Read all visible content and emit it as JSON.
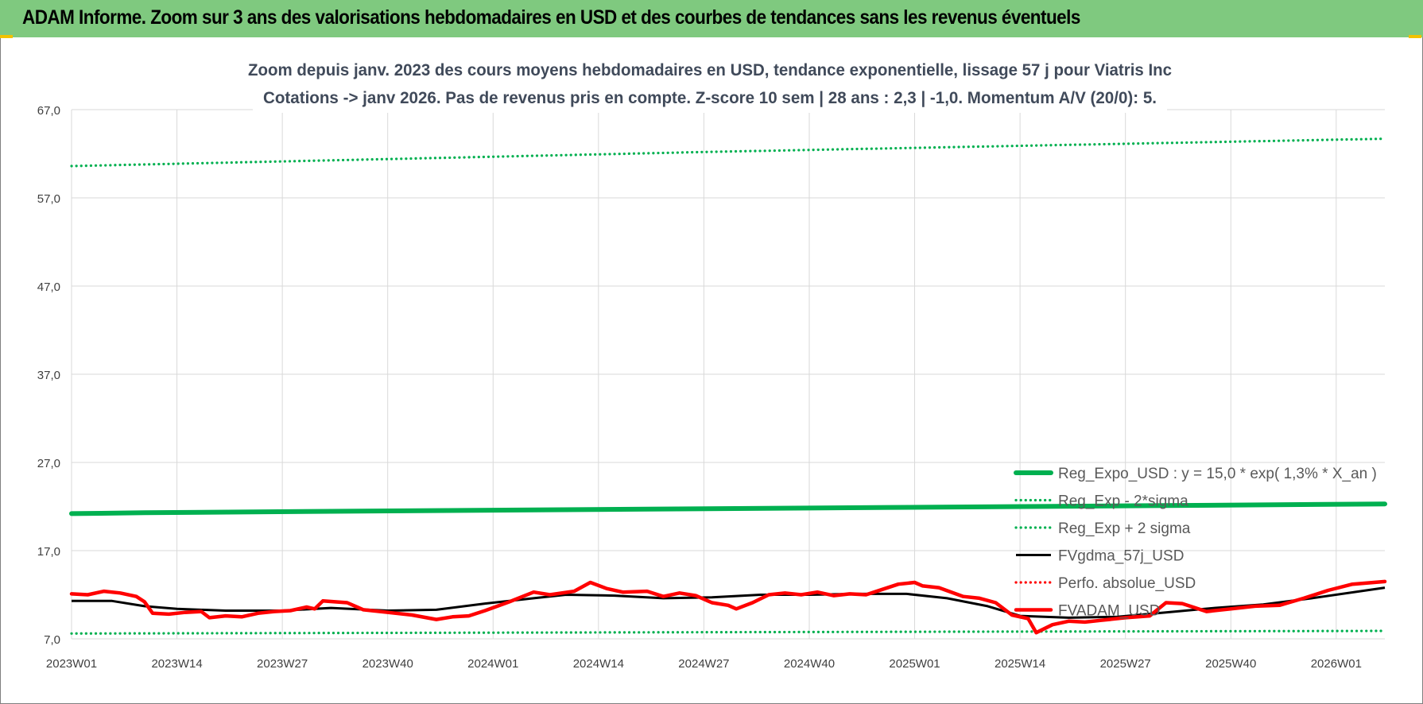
{
  "banner": {
    "title": "ADAM Informe. Zoom sur 3 ans des valorisations hebdomadaires en USD et des courbes de tendances sans les revenus éventuels"
  },
  "chart_data": {
    "type": "line",
    "title_lines": [
      "Zoom depuis janv. 2023 des cours moyens hebdomadaires en USD, tendance exponentielle, lissage 57 j pour Viatris Inc",
      "Cotations -> janv 2026. Pas de revenus pris en compte. Z-score 10 sem | 28 ans : 2,3 | -1,0. Momentum A/V (20/0): 5."
    ],
    "x_start": "2023W01",
    "x_end": "2026W07",
    "x_ticks": [
      "2023W01",
      "2023W14",
      "2023W27",
      "2023W40",
      "2024W01",
      "2024W14",
      "2024W27",
      "2024W40",
      "2025W01",
      "2025W14",
      "2025W27",
      "2025W40",
      "2026W01"
    ],
    "y_ticks": [
      "7,0",
      "17,0",
      "27,0",
      "37,0",
      "47,0",
      "57,0",
      "67,0"
    ],
    "ylim": [
      7,
      67
    ],
    "grid": true,
    "legend_position": "bottom-right",
    "series": [
      {
        "name": "Reg_Expo_USD : y = 15,0 * exp( 1,3% *  X_an )",
        "color": "#00b050",
        "style": "solid-thick",
        "points": [
          [
            "2023W01",
            21.2
          ],
          [
            "2023W10",
            21.3
          ],
          [
            "2023W40",
            21.5
          ],
          [
            "2024W20",
            21.7
          ],
          [
            "2024W50",
            21.9
          ],
          [
            "2025W30",
            22.1
          ],
          [
            "2026W07",
            22.3
          ]
        ]
      },
      {
        "name": "Reg_Exp - 2*sigma",
        "color": "#00b050",
        "style": "dotted",
        "points": [
          [
            "2023W01",
            7.6
          ],
          [
            "2024W01",
            7.7
          ],
          [
            "2025W01",
            7.8
          ],
          [
            "2026W07",
            7.9
          ]
        ]
      },
      {
        "name": "Reg_Exp + 2 sigma",
        "color": "#00b050",
        "style": "dotted",
        "points": [
          [
            "2023W01",
            60.6
          ],
          [
            "2023W40",
            61.4
          ],
          [
            "2024W27",
            62.2
          ],
          [
            "2025W14",
            62.9
          ],
          [
            "2026W07",
            63.7
          ]
        ]
      },
      {
        "name": "FVgdma_57j_USD",
        "color": "#000000",
        "style": "solid",
        "points": [
          [
            "2023W01",
            11.3
          ],
          [
            "2023W06",
            11.3
          ],
          [
            "2023W10",
            10.7
          ],
          [
            "2023W14",
            10.4
          ],
          [
            "2023W20",
            10.2
          ],
          [
            "2023W27",
            10.2
          ],
          [
            "2023W33",
            10.5
          ],
          [
            "2023W40",
            10.2
          ],
          [
            "2023W46",
            10.3
          ],
          [
            "2023W52",
            11.0
          ],
          [
            "2024W06",
            11.6
          ],
          [
            "2024W10",
            12.0
          ],
          [
            "2024W16",
            11.9
          ],
          [
            "2024W22",
            11.6
          ],
          [
            "2024W28",
            11.7
          ],
          [
            "2024W34",
            12.0
          ],
          [
            "2024W40",
            12.0
          ],
          [
            "2024W46",
            12.1
          ],
          [
            "2024W52",
            12.1
          ],
          [
            "2025W05",
            11.6
          ],
          [
            "2025W10",
            10.7
          ],
          [
            "2025W14",
            9.6
          ],
          [
            "2025W20",
            9.4
          ],
          [
            "2025W26",
            9.5
          ],
          [
            "2025W32",
            10.0
          ],
          [
            "2025W38",
            10.5
          ],
          [
            "2025W44",
            10.9
          ],
          [
            "2025W50",
            11.6
          ],
          [
            "2026W07",
            12.8
          ]
        ]
      },
      {
        "name": "Perfo. absolue_USD",
        "color": "#ff0000",
        "style": "dotted",
        "points": []
      },
      {
        "name": "FVADAM_USD",
        "color": "#ff0000",
        "style": "solid-thick",
        "points": [
          [
            "2023W01",
            12.1
          ],
          [
            "2023W03",
            12.0
          ],
          [
            "2023W05",
            12.4
          ],
          [
            "2023W07",
            12.2
          ],
          [
            "2023W09",
            11.8
          ],
          [
            "2023W10",
            11.2
          ],
          [
            "2023W11",
            9.9
          ],
          [
            "2023W13",
            9.8
          ],
          [
            "2023W15",
            10.0
          ],
          [
            "2023W17",
            10.1
          ],
          [
            "2023W18",
            9.4
          ],
          [
            "2023W20",
            9.6
          ],
          [
            "2023W22",
            9.5
          ],
          [
            "2023W24",
            9.9
          ],
          [
            "2023W26",
            10.1
          ],
          [
            "2023W28",
            10.2
          ],
          [
            "2023W30",
            10.6
          ],
          [
            "2023W31",
            10.4
          ],
          [
            "2023W32",
            11.3
          ],
          [
            "2023W35",
            11.1
          ],
          [
            "2023W37",
            10.3
          ],
          [
            "2023W40",
            10.0
          ],
          [
            "2023W43",
            9.7
          ],
          [
            "2023W46",
            9.2
          ],
          [
            "2023W48",
            9.5
          ],
          [
            "2023W50",
            9.6
          ],
          [
            "2023W52",
            10.2
          ],
          [
            "2024W03",
            11.2
          ],
          [
            "2024W06",
            12.3
          ],
          [
            "2024W08",
            12.0
          ],
          [
            "2024W11",
            12.4
          ],
          [
            "2024W13",
            13.4
          ],
          [
            "2024W15",
            12.7
          ],
          [
            "2024W17",
            12.3
          ],
          [
            "2024W20",
            12.4
          ],
          [
            "2024W22",
            11.8
          ],
          [
            "2024W24",
            12.2
          ],
          [
            "2024W26",
            11.9
          ],
          [
            "2024W28",
            11.1
          ],
          [
            "2024W30",
            10.8
          ],
          [
            "2024W31",
            10.4
          ],
          [
            "2024W33",
            11.1
          ],
          [
            "2024W35",
            12.0
          ],
          [
            "2024W37",
            12.2
          ],
          [
            "2024W39",
            12.0
          ],
          [
            "2024W41",
            12.3
          ],
          [
            "2024W43",
            11.9
          ],
          [
            "2024W45",
            12.1
          ],
          [
            "2024W47",
            12.0
          ],
          [
            "2024W49",
            12.6
          ],
          [
            "2024W51",
            13.2
          ],
          [
            "2024W53",
            13.4
          ],
          [
            "2025W02",
            13.0
          ],
          [
            "2025W04",
            12.8
          ],
          [
            "2025W07",
            11.8
          ],
          [
            "2025W09",
            11.6
          ],
          [
            "2025W11",
            11.1
          ],
          [
            "2025W13",
            9.7
          ],
          [
            "2025W15",
            9.3
          ],
          [
            "2025W16",
            7.7
          ],
          [
            "2025W18",
            8.6
          ],
          [
            "2025W20",
            9.0
          ],
          [
            "2025W22",
            8.9
          ],
          [
            "2025W24",
            9.1
          ],
          [
            "2025W27",
            9.4
          ],
          [
            "2025W30",
            9.6
          ],
          [
            "2025W32",
            11.1
          ],
          [
            "2025W34",
            11.0
          ],
          [
            "2025W37",
            10.1
          ],
          [
            "2025W40",
            10.4
          ],
          [
            "2025W43",
            10.7
          ],
          [
            "2025W46",
            10.8
          ],
          [
            "2025W49",
            11.6
          ],
          [
            "2025W52",
            12.5
          ],
          [
            "2026W03",
            13.2
          ],
          [
            "2026W07",
            13.5
          ]
        ]
      }
    ]
  }
}
